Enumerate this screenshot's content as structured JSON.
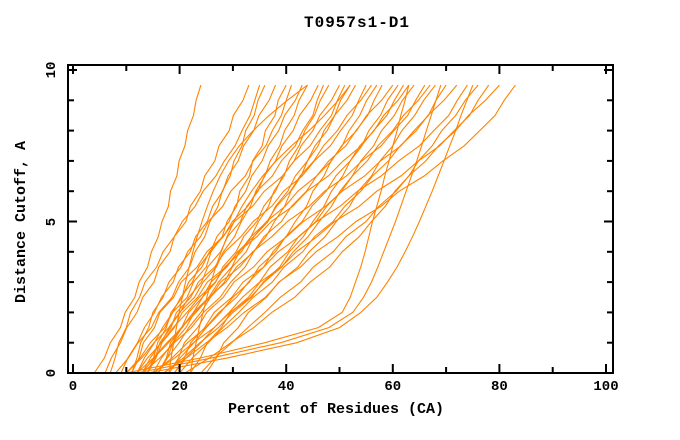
{
  "chart_data": {
    "type": "line",
    "title": "T0957s1-D1",
    "xlabel": "Percent of Residues (CA)",
    "ylabel": "Distance Cutoff, A",
    "xlim": [
      0,
      100
    ],
    "ylim": [
      0,
      10
    ],
    "grid": false,
    "legend": "none",
    "line_color": "#ff8300",
    "axis_color": "#000000",
    "background_color": "#ffffff",
    "x_major_ticks": [
      0,
      20,
      40,
      60,
      80,
      100
    ],
    "x_minor_ticks": [
      10,
      30,
      50,
      70,
      90
    ],
    "y_major_ticks": [
      0,
      5,
      10
    ],
    "y_minor_ticks": [
      1,
      2,
      3,
      4,
      6,
      7,
      8,
      9
    ],
    "cutoffs": [
      0,
      0.5,
      1,
      1.5,
      2,
      2.5,
      3,
      3.5,
      4,
      4.5,
      5,
      5.5,
      6,
      6.5,
      7,
      7.5,
      8,
      8.5,
      9,
      9.5
    ],
    "series": [
      {
        "percent": [
          4,
          5.9,
          7,
          8.9,
          9.8,
          11.6,
          12.4,
          14,
          14.7,
          16,
          16.7,
          17.9,
          18.3,
          19.5,
          19.9,
          21,
          21.5,
          22.6,
          23.1,
          24
        ]
      },
      {
        "percent": [
          6,
          7.2,
          8.9,
          10.1,
          12,
          13.1,
          15.2,
          16.1,
          18.2,
          19,
          21.2,
          22,
          23.9,
          24.7,
          26.6,
          27.4,
          29.3,
          30.1,
          31.9,
          33
        ]
      },
      {
        "percent": [
          7,
          7.9,
          8.6,
          10,
          10.8,
          12.5,
          13.5,
          15.7,
          16.9,
          19,
          20.5,
          22.9,
          24.4,
          26.8,
          28.4,
          30.4,
          31.7,
          33.2,
          34.1,
          35
        ]
      },
      {
        "percent": [
          8,
          10.4,
          12.2,
          14.7,
          16.1,
          18.6,
          19.8,
          21.9,
          22.9,
          24.7,
          25.7,
          27.2,
          28,
          29.5,
          30.2,
          31.7,
          32.4,
          34,
          34.7,
          36
        ]
      },
      {
        "percent": [
          9,
          10.3,
          12.1,
          13.4,
          15.3,
          16.6,
          18.8,
          19.8,
          22,
          23,
          25.2,
          26.2,
          28.1,
          29.1,
          31,
          32,
          33.9,
          34.9,
          36.8,
          38
        ]
      },
      {
        "percent": [
          10,
          12.6,
          14.5,
          17.2,
          18.7,
          21.4,
          22.6,
          25,
          25.9,
          28,
          28.9,
          30.7,
          31.3,
          33.1,
          33.7,
          35.5,
          36.1,
          37.9,
          38.5,
          40
        ]
      },
      {
        "percent": [
          11,
          12,
          12.7,
          14.2,
          15,
          16.9,
          18,
          20.3,
          21.5,
          23.9,
          25.4,
          28.1,
          29.6,
          32.3,
          33.8,
          36.2,
          37.4,
          39.1,
          40,
          41
        ]
      },
      {
        "percent": [
          12,
          13.4,
          15.3,
          16.8,
          18.7,
          20.2,
          22.4,
          23.6,
          25.8,
          27,
          29.3,
          30.4,
          32.4,
          33.5,
          35.5,
          36.6,
          38.6,
          39.7,
          41.7,
          43
        ]
      },
      {
        "percent": [
          10,
          12.9,
          15.2,
          18,
          20,
          22.8,
          24.4,
          26.9,
          28.2,
          30.3,
          31.6,
          33.3,
          34.3,
          36,
          37,
          38.8,
          39.7,
          41.5,
          42.4,
          44
        ]
      },
      {
        "percent": [
          13,
          14.5,
          16.5,
          18.1,
          20.1,
          21.7,
          24.1,
          25.3,
          27.7,
          29,
          31.4,
          32.6,
          34.7,
          35.9,
          38,
          39.2,
          41.3,
          42.5,
          44.6,
          46
        ]
      },
      {
        "percent": [
          14,
          15.1,
          15.9,
          17.5,
          18.4,
          20.5,
          21.7,
          24.2,
          25.6,
          28.2,
          29.9,
          32.8,
          34.5,
          37.4,
          39.1,
          41.7,
          43.1,
          45,
          45.8,
          47
        ]
      },
      {
        "percent": [
          12,
          15.1,
          17.6,
          20.5,
          22.6,
          25.5,
          27.3,
          29.8,
          31.2,
          33.4,
          34.8,
          36.7,
          37.7,
          39.6,
          40.6,
          42.4,
          43.5,
          45.3,
          46.4,
          48
        ]
      },
      {
        "percent": [
          15,
          16.6,
          18.7,
          20.4,
          22.6,
          24.3,
          26.8,
          28.1,
          30.6,
          32,
          34.5,
          35.8,
          38,
          39.3,
          41.5,
          42.8,
          45,
          46.3,
          48.5,
          50
        ]
      },
      {
        "percent": [
          11,
          12.4,
          13.2,
          15.3,
          16.3,
          18.9,
          20.3,
          23.3,
          25.1,
          28.1,
          30.3,
          33.7,
          35.9,
          39.3,
          41.5,
          44.5,
          46.3,
          48.5,
          49.6,
          51
        ]
      },
      {
        "percent": [
          13,
          16.3,
          19,
          22.2,
          24.5,
          27.6,
          29.6,
          32.3,
          33.9,
          36.2,
          37.8,
          39.7,
          40.9,
          42.8,
          44,
          46,
          47.1,
          49.1,
          50.2,
          52
        ]
      },
      {
        "percent": [
          16,
          17.7,
          19.9,
          21.7,
          24,
          25.8,
          28.4,
          29.9,
          32.5,
          33.9,
          36.6,
          38,
          40.3,
          41.7,
          44,
          45.4,
          47.7,
          49.1,
          51.4,
          53
        ]
      },
      {
        "percent": [
          14,
          15.4,
          16.3,
          18.4,
          19.4,
          22.1,
          23.5,
          26.6,
          28.5,
          31.5,
          33.8,
          37.3,
          39.5,
          43,
          45.3,
          48.3,
          50.2,
          52.4,
          53.6,
          55
        ]
      },
      {
        "percent": [
          12,
          14,
          16.6,
          18.8,
          21.4,
          23.7,
          26.7,
          28.5,
          31.6,
          33.4,
          36.4,
          38.2,
          40.8,
          42.6,
          45.2,
          47,
          49.6,
          51.4,
          54,
          56
        ]
      },
      {
        "percent": [
          15,
          18.6,
          21.5,
          24.9,
          27.4,
          30.7,
          32.9,
          35.8,
          37.5,
          40,
          41.7,
          43.8,
          45,
          47.1,
          48.4,
          50.5,
          51.8,
          53.8,
          55.1,
          57
        ]
      },
      {
        "percent": [
          16,
          17.5,
          18.3,
          20.4,
          21.7,
          24.3,
          25.9,
          28.9,
          30.9,
          33.9,
          36.3,
          39.8,
          42.2,
          45.7,
          48,
          51.2,
          53.1,
          55.3,
          56.5,
          58
        ]
      },
      {
        "percent": [
          13,
          15.2,
          17.9,
          20.3,
          23.1,
          25.5,
          28.7,
          30.7,
          33.9,
          35.8,
          39.1,
          41,
          43.8,
          45.7,
          48.5,
          50.4,
          53.2,
          55.1,
          57.9,
          60
        ]
      },
      {
        "percent": [
          17,
          20.7,
          23.8,
          27.3,
          30,
          33.5,
          35.7,
          38.8,
          40.6,
          43.2,
          45,
          47.1,
          48.5,
          50.6,
          52,
          54.2,
          55.5,
          57.7,
          59,
          61
        ]
      },
      {
        "percent": [
          14,
          15.6,
          16.7,
          19,
          20.5,
          23.4,
          25.2,
          28.7,
          31,
          34.5,
          37.2,
          41.2,
          43.9,
          47.9,
          50.7,
          54.1,
          56.4,
          58.9,
          60.3,
          62
        ]
      },
      {
        "percent": [
          18,
          20.1,
          22.7,
          25,
          27.7,
          30,
          33.1,
          34.9,
          38,
          39.9,
          43,
          44.8,
          47.5,
          49.3,
          52,
          53.8,
          56.5,
          58.3,
          61,
          63
        ]
      },
      {
        "percent": [
          15,
          19.1,
          22.6,
          26.5,
          29.5,
          33.3,
          35.9,
          39.2,
          41.3,
          44.1,
          46.2,
          48.5,
          50.1,
          52.4,
          54,
          56.4,
          57.9,
          60.3,
          61.8,
          64
        ]
      },
      {
        "percent": [
          16,
          17.7,
          18.8,
          21.2,
          22.8,
          25.8,
          27.7,
          31.3,
          33.7,
          37.3,
          40.2,
          44.3,
          47.2,
          51.3,
          54.2,
          57.8,
          60.2,
          62.8,
          64.3,
          66
        ]
      },
      {
        "percent": [
          19,
          21.2,
          24,
          26.5,
          29.3,
          31.8,
          35,
          37,
          40.3,
          42.3,
          45.6,
          47.6,
          50.4,
          52.4,
          55.2,
          57.2,
          60,
          62,
          64.8,
          67
        ]
      },
      {
        "percent": [
          17,
          21.3,
          25,
          28.9,
          32.1,
          36.1,
          38.7,
          42.2,
          44.3,
          47.3,
          49.4,
          51.9,
          53.5,
          56,
          57.6,
          60,
          61.7,
          64.1,
          65.8,
          68
        ]
      },
      {
        "percent": [
          18,
          19.8,
          20.9,
          23.4,
          25.1,
          28.2,
          30.2,
          33.9,
          36.4,
          40.1,
          43.2,
          47.4,
          50.5,
          54.7,
          57.7,
          61.5,
          64,
          66.7,
          68.1,
          70
        ]
      },
      {
        "percent": [
          20,
          22.4,
          25.4,
          28.1,
          31.1,
          33.8,
          37.4,
          39.6,
          43.1,
          45.3,
          48.8,
          51,
          54,
          56.2,
          59.2,
          61.4,
          64.4,
          66.6,
          69.6,
          72
        ]
      },
      {
        "percent": [
          19,
          20.9,
          22.1,
          24.7,
          26.5,
          29.8,
          31.9,
          35.8,
          38.5,
          42.4,
          45.7,
          50.1,
          53.4,
          57.8,
          61.1,
          65,
          67.7,
          70.5,
          72.1,
          74
        ]
      },
      {
        "percent": [
          21,
          25.6,
          29.6,
          33.9,
          37.3,
          41.6,
          44.5,
          48.2,
          50.5,
          53.7,
          56,
          58.6,
          60.4,
          63,
          64.8,
          67.4,
          69.2,
          71.8,
          73.6,
          76
        ]
      },
      {
        "percent": [
          22,
          23.9,
          25.2,
          27.8,
          29.6,
          32.9,
          35.1,
          39.1,
          41.9,
          45.8,
          49.1,
          53.7,
          57,
          61.5,
          64.8,
          68.8,
          71.5,
          74.4,
          76,
          78
        ]
      },
      {
        "percent": [
          24,
          26.6,
          29.8,
          32.8,
          36,
          38.9,
          42.7,
          45.1,
          48.8,
          51.2,
          55,
          57.4,
          60.6,
          63,
          66.2,
          68.6,
          71.8,
          74.2,
          77.4,
          80
        ]
      },
      {
        "percent": [
          25,
          26.9,
          28.3,
          31,
          32.9,
          36.3,
          38.6,
          42.7,
          45.6,
          49.7,
          53.1,
          57.8,
          61.2,
          65.9,
          69.4,
          73.4,
          76.3,
          79.2,
          80.9,
          83
        ]
      },
      {
        "percent": [
          10,
          24,
          36,
          46,
          50.5,
          52,
          53,
          54,
          54.8,
          55.5,
          56.2,
          57,
          57.8,
          58.5,
          59.3,
          60,
          60.8,
          61.5,
          62.3,
          63
        ]
      },
      {
        "percent": [
          12,
          26,
          39,
          48,
          52.5,
          54.5,
          56,
          57.2,
          58.3,
          59.4,
          60.5,
          61.5,
          62.5,
          63.5,
          64.5,
          65.4,
          66.3,
          67.2,
          68.1,
          69
        ]
      },
      {
        "percent": [
          14,
          29,
          42,
          50,
          54,
          57,
          59,
          60.8,
          62.3,
          63.7,
          65,
          66.2,
          67.4,
          68.5,
          69.6,
          70.7,
          71.8,
          72.8,
          73.9,
          75
        ]
      },
      {
        "percent": [
          18,
          18.4,
          18.9,
          19.4,
          19.9,
          20.5,
          21.1,
          21.8,
          22.5,
          23.3,
          24.2,
          25.2,
          26.3,
          27.6,
          29.2,
          31.2,
          33.8,
          36.8,
          40.2,
          44
        ]
      },
      {
        "percent": [
          22,
          22.5,
          23.1,
          23.7,
          24.4,
          25.1,
          25.9,
          26.8,
          27.8,
          28.9,
          30.2,
          31.7,
          33.5,
          35.6,
          38.1,
          41,
          44.3,
          47.2,
          49.8,
          52
        ]
      }
    ]
  }
}
